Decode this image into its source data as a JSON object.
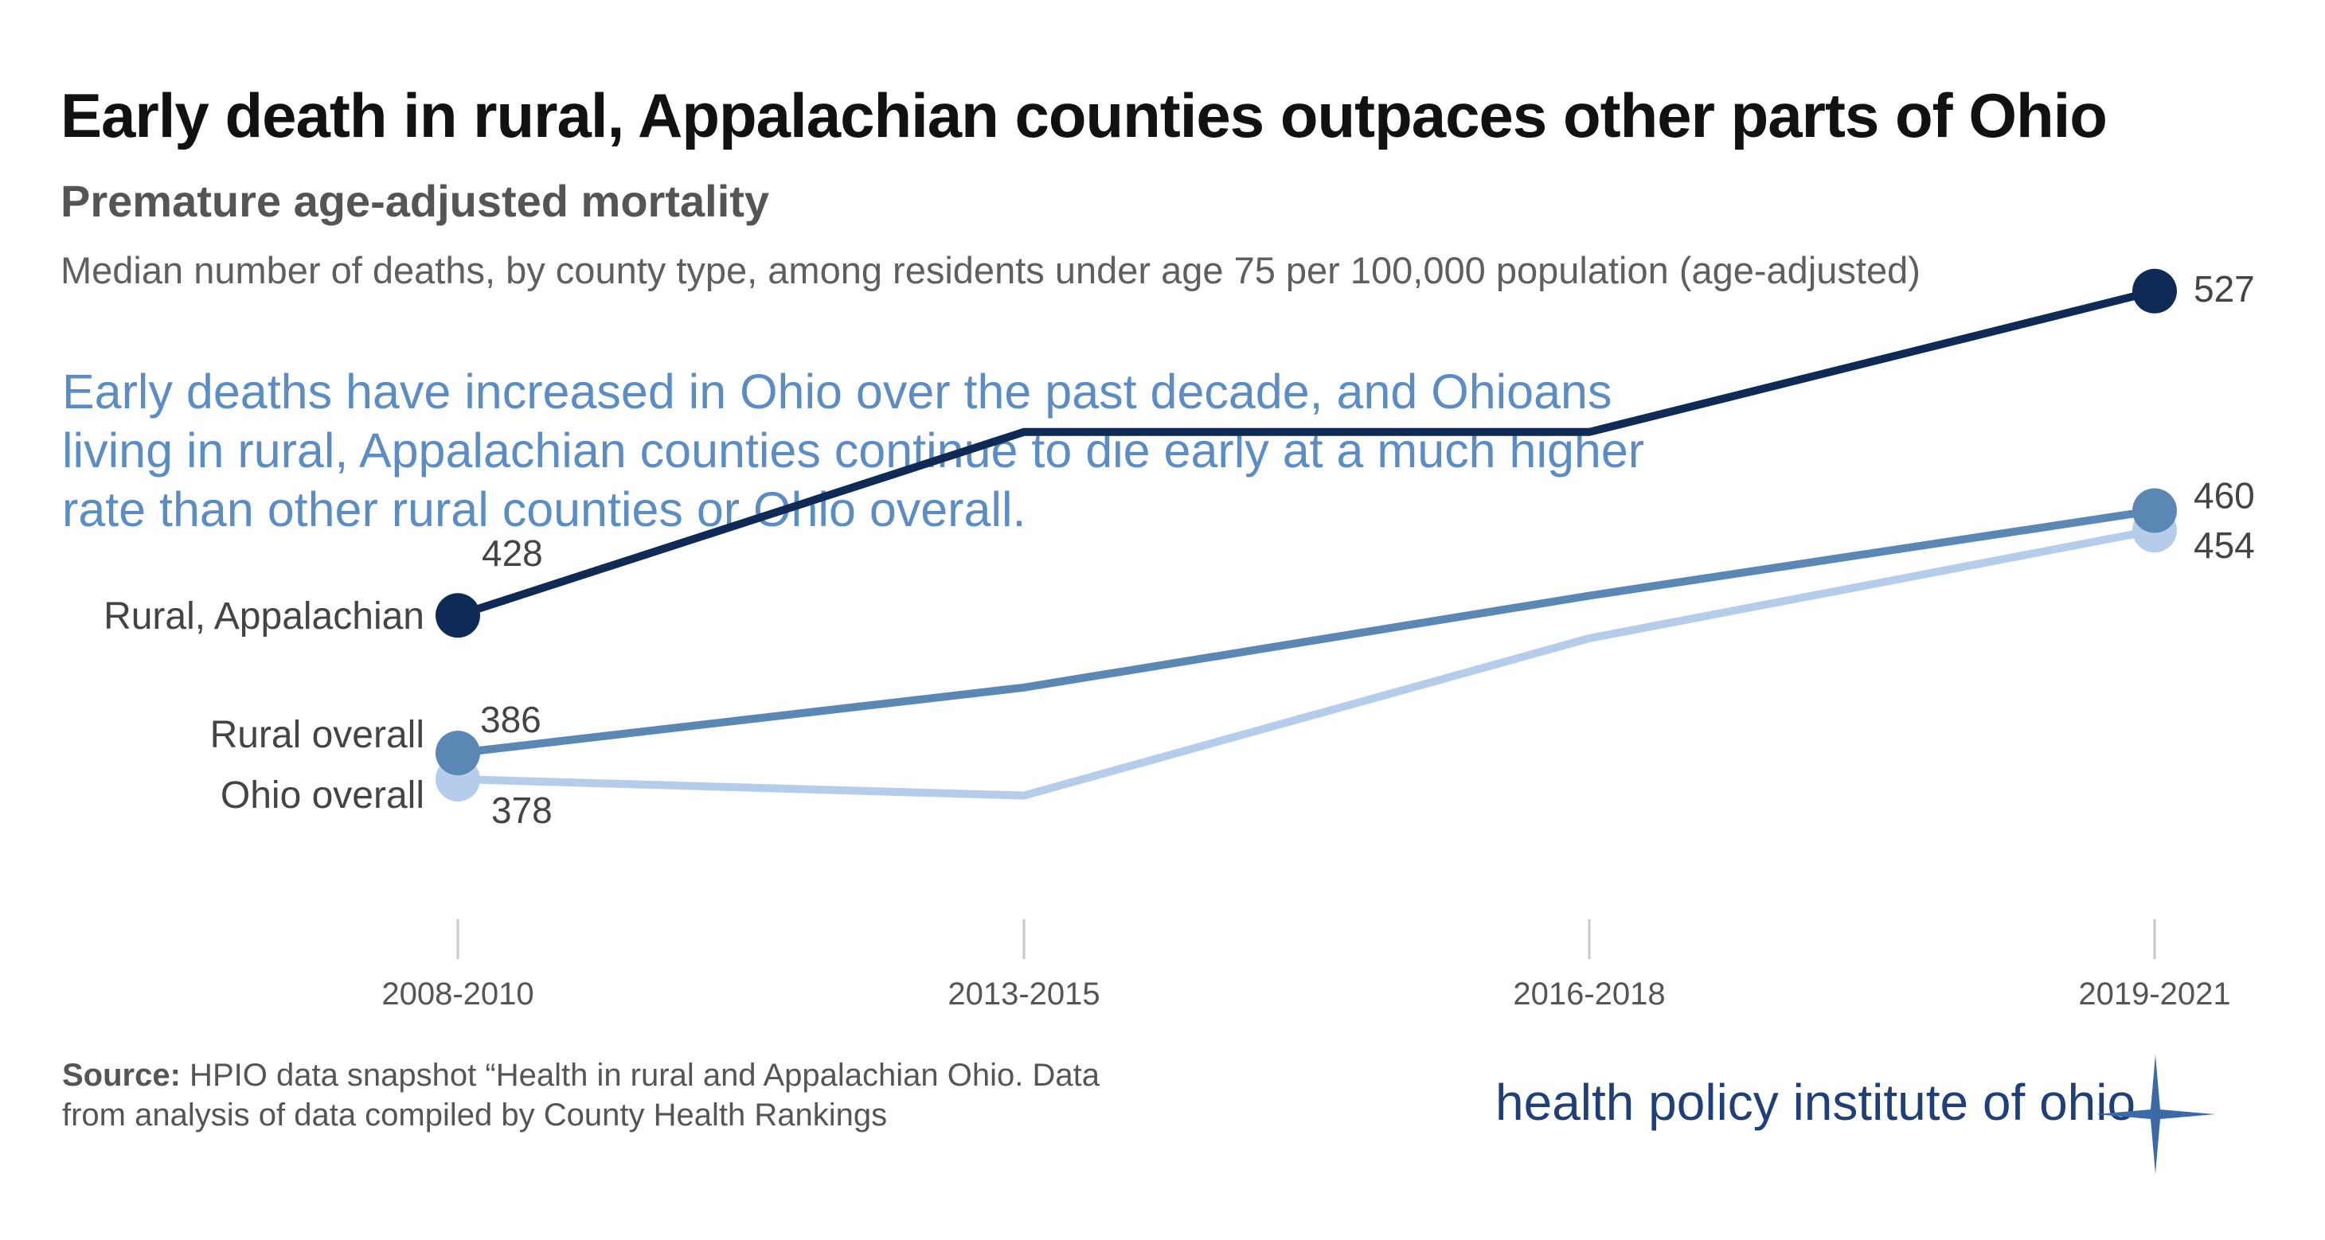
{
  "title": "Early death in rural, Appalachian counties outpaces other parts of Ohio",
  "subtitle": "Premature age-adjusted mortality",
  "description": "Median number of deaths, by county type, among residents under age 75 per 100,000 population (age-adjusted)",
  "callout": [
    "Early deaths have increased in Ohio over the past decade, and Ohioans",
    "living in rural, Appalachian counties continue to die early at a much higher",
    "rate than other rural counties or Ohio overall."
  ],
  "source": {
    "label": "Source:",
    "line1": " HPIO data snapshot “Health in rural and Appalachian Ohio. Data",
    "line2": "from analysis of data compiled by County Health Rankings"
  },
  "logo": "health policy institute of ohio",
  "colors": {
    "rural_appalachian": "#0f2a55",
    "rural_overall": "#5b87b5",
    "ohio_overall": "#b5cdea",
    "callout": "#5b8cc4"
  },
  "chart_data": {
    "type": "line",
    "categories": [
      "2008-2010",
      "2013-2015",
      "2016-2018",
      "2019-2021"
    ],
    "series": [
      {
        "name": "Rural, Appalachian",
        "values": [
          428,
          484,
          484,
          527
        ],
        "start_label": "428",
        "end_label": "527"
      },
      {
        "name": "Rural overall",
        "values": [
          386,
          406,
          434,
          460
        ],
        "start_label": "386",
        "end_label": "460"
      },
      {
        "name": "Ohio overall",
        "values": [
          378,
          373,
          421,
          454
        ],
        "start_label": "378",
        "end_label": "454"
      }
    ],
    "ylim": [
      300,
      560
    ],
    "xlabel": "",
    "ylabel": "",
    "grid": false
  }
}
